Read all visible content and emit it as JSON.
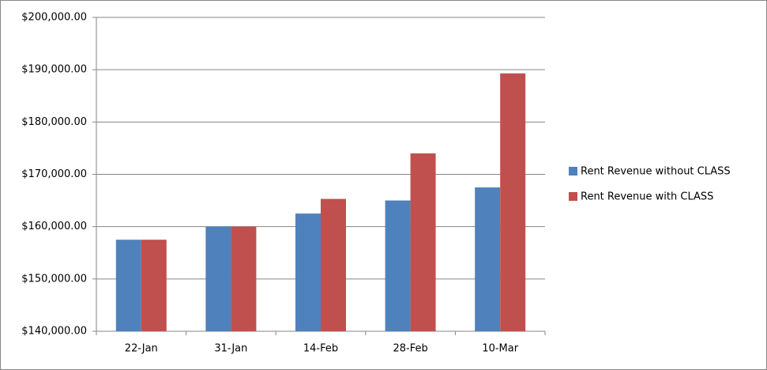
{
  "chart_data": {
    "type": "bar",
    "categories": [
      "22-Jan",
      "31-Jan",
      "14-Feb",
      "28-Feb",
      "10-Mar"
    ],
    "series": [
      {
        "name": "Rent Revenue without CLASS",
        "color": "#4f81bd",
        "values": [
          157500,
          160000,
          162500,
          165000,
          167500
        ]
      },
      {
        "name": "Rent Revenue with CLASS",
        "color": "#c0504d",
        "values": [
          157500,
          160000,
          165300,
          174000,
          189300
        ]
      }
    ],
    "ylim": [
      140000,
      200000
    ],
    "yticks": [
      {
        "value": 140000,
        "label": "$140,000.00"
      },
      {
        "value": 150000,
        "label": "$150,000.00"
      },
      {
        "value": 160000,
        "label": "$160,000.00"
      },
      {
        "value": 170000,
        "label": "$170,000.00"
      },
      {
        "value": 180000,
        "label": "$180,000.00"
      },
      {
        "value": 190000,
        "label": "$190,000.00"
      },
      {
        "value": 200000,
        "label": "$200,000.00"
      }
    ],
    "grid": true,
    "legend": "right"
  }
}
